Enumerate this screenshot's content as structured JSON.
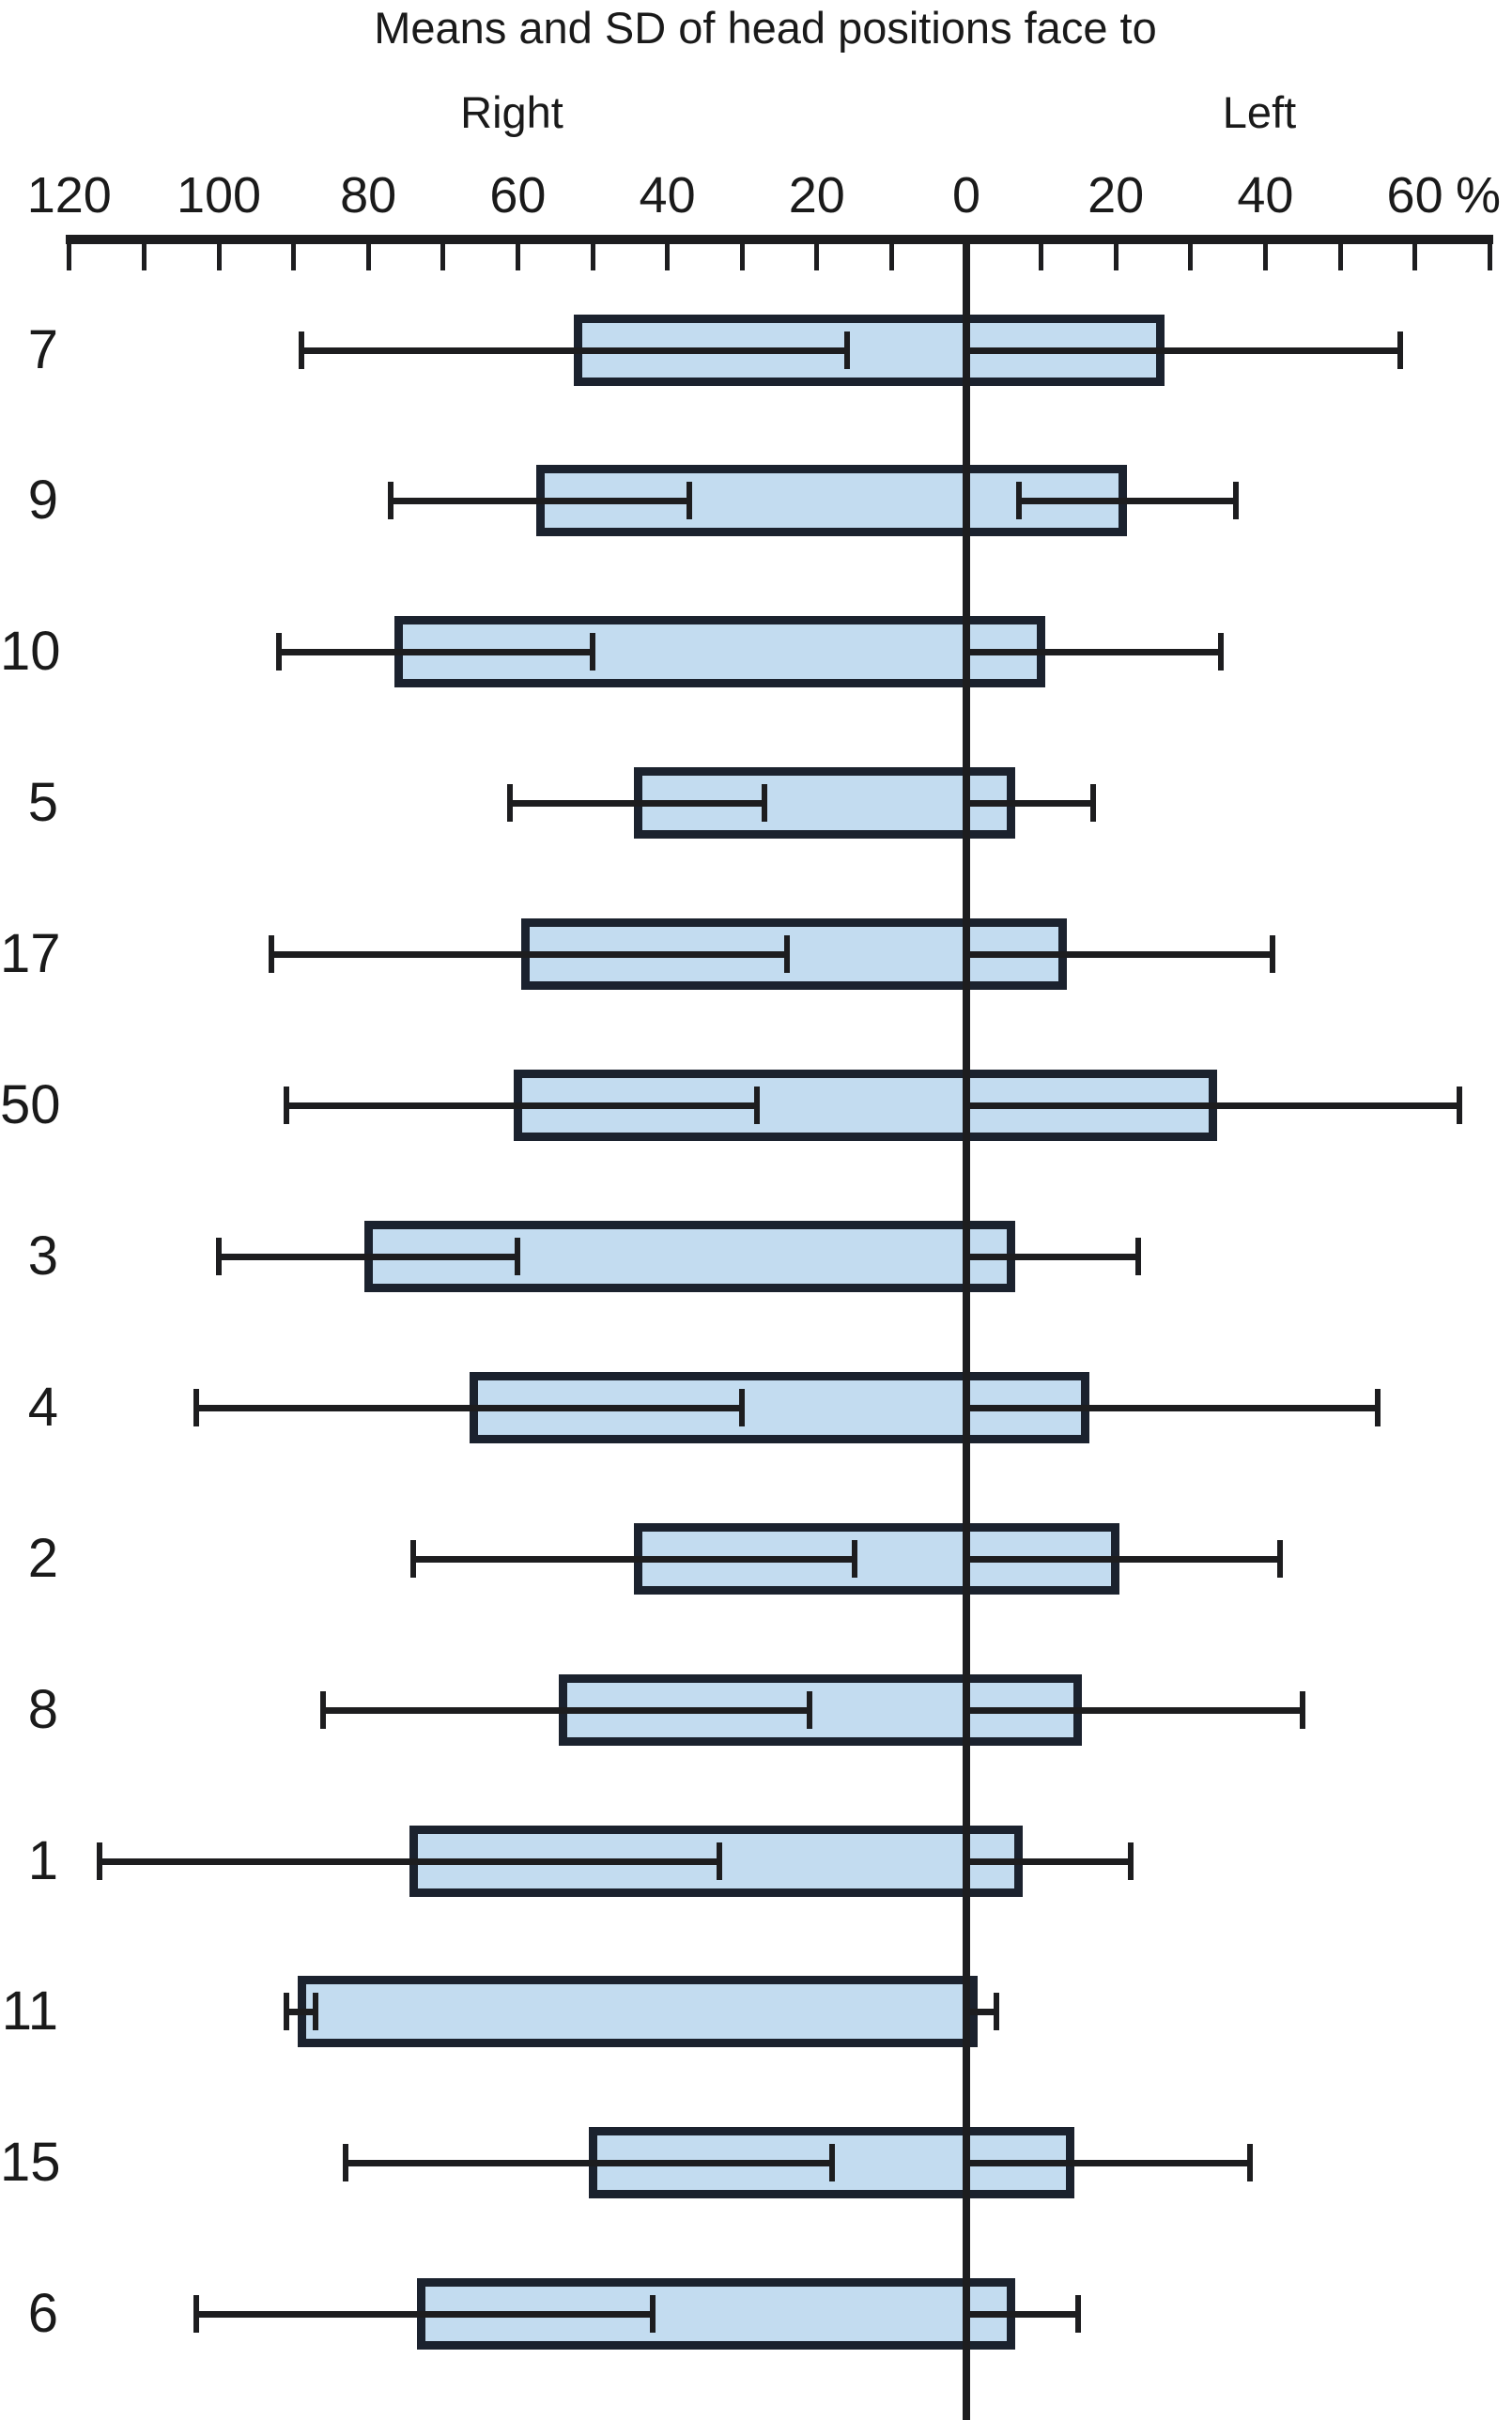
{
  "page": {
    "title": "Means and SD of head positions face to",
    "right_direction_label": "Right",
    "left_direction_label": "Left",
    "percent_label": "%"
  },
  "chart_data": {
    "type": "bar",
    "subtype": "diverging-horizontal-bars-with-sd-whiskers",
    "title": "Means and SD of head positions face to",
    "unit": "%",
    "direction_labels": {
      "right": "Right",
      "left": "Left"
    },
    "axis": {
      "tick_step": 10,
      "right_extent": 120,
      "left_extent": 70,
      "labeled_ticks": [
        "120",
        "100",
        "80",
        "60",
        "40",
        "20",
        "0",
        "20",
        "40",
        "60"
      ],
      "labeled_tick_units": [
        120,
        100,
        80,
        60,
        40,
        20,
        0,
        -20,
        -40,
        -60
      ],
      "percent_symbol": "%",
      "grid": false
    },
    "rows": [
      {
        "label": "7",
        "right": {
          "bar": 52,
          "sd_low": 16,
          "sd_high": 89
        },
        "left": {
          "bar": 26,
          "sd_low": -6,
          "sd_high": 58
        }
      },
      {
        "label": "9",
        "right": {
          "bar": 57,
          "sd_low": 37,
          "sd_high": 77
        },
        "left": {
          "bar": 21,
          "sd_low": 7,
          "sd_high": 36
        }
      },
      {
        "label": "10",
        "right": {
          "bar": 76,
          "sd_low": 50,
          "sd_high": 92
        },
        "left": {
          "bar": 10,
          "sd_low": -14,
          "sd_high": 34
        }
      },
      {
        "label": "5",
        "right": {
          "bar": 44,
          "sd_low": 27,
          "sd_high": 61
        },
        "left": {
          "bar": 6,
          "sd_low": -5,
          "sd_high": 17
        }
      },
      {
        "label": "17",
        "right": {
          "bar": 59,
          "sd_low": 24,
          "sd_high": 93
        },
        "left": {
          "bar": 13,
          "sd_low": -15,
          "sd_high": 41
        }
      },
      {
        "label": "50",
        "right": {
          "bar": 60,
          "sd_low": 28,
          "sd_high": 91
        },
        "left": {
          "bar": 33,
          "sd_low": -1,
          "sd_high": 66
        }
      },
      {
        "label": "3",
        "right": {
          "bar": 80,
          "sd_low": 60,
          "sd_high": 100
        },
        "left": {
          "bar": 6,
          "sd_low": -11,
          "sd_high": 23
        }
      },
      {
        "label": "4",
        "right": {
          "bar": 66,
          "sd_low": 30,
          "sd_high": 103
        },
        "left": {
          "bar": 16,
          "sd_low": -23,
          "sd_high": 55
        }
      },
      {
        "label": "2",
        "right": {
          "bar": 44,
          "sd_low": 15,
          "sd_high": 74
        },
        "left": {
          "bar": 20,
          "sd_low": -2,
          "sd_high": 42
        }
      },
      {
        "label": "8",
        "right": {
          "bar": 54,
          "sd_low": 21,
          "sd_high": 86
        },
        "left": {
          "bar": 15,
          "sd_low": -15,
          "sd_high": 45
        }
      },
      {
        "label": "1",
        "right": {
          "bar": 74,
          "sd_low": 33,
          "sd_high": 116
        },
        "left": {
          "bar": 7,
          "sd_low": -8,
          "sd_high": 22
        }
      },
      {
        "label": "11",
        "right": {
          "bar": 89,
          "sd_low": 87,
          "sd_high": 91
        },
        "left": {
          "bar": 1,
          "sd_low": -2,
          "sd_high": 4
        }
      },
      {
        "label": "15",
        "right": {
          "bar": 50,
          "sd_low": 18,
          "sd_high": 83
        },
        "left": {
          "bar": 14,
          "sd_low": -10,
          "sd_high": 38
        }
      },
      {
        "label": "6",
        "right": {
          "bar": 73,
          "sd_low": 42,
          "sd_high": 103
        },
        "left": {
          "bar": 6,
          "sd_low": -3,
          "sd_high": 15
        }
      }
    ],
    "colors": {
      "bar_fill": "#c3dcf0",
      "bar_border": "#1b222e",
      "line": "#1d1d1f",
      "text": "#1a1a1a"
    }
  }
}
